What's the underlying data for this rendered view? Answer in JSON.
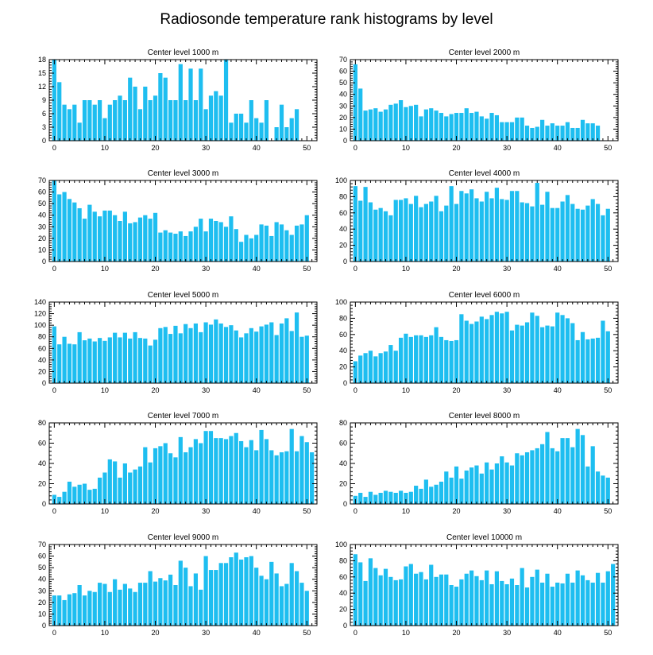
{
  "title": "Radiosonde temperature rank histograms by level",
  "chart_data": [
    {
      "type": "bar",
      "title": "Center level 1000 m",
      "x_start": 0,
      "xlim": [
        -1,
        52
      ],
      "xticks": [
        0,
        10,
        20,
        30,
        40,
        50
      ],
      "ylim": [
        0,
        18
      ],
      "yticks": [
        0,
        3,
        6,
        9,
        12,
        15,
        18
      ],
      "bar_color": "#1EBEF0",
      "values": [
        18,
        13,
        8,
        7,
        8,
        4,
        9,
        9,
        8,
        9,
        5,
        8,
        9,
        10,
        9,
        14,
        12,
        7,
        12,
        9,
        10,
        15,
        14,
        9,
        9,
        17,
        9,
        16,
        9,
        16,
        7,
        10,
        11,
        10,
        18,
        4,
        6,
        6,
        4,
        9,
        5,
        4,
        9,
        0,
        3,
        8,
        3,
        5,
        7,
        0,
        0,
        0
      ]
    },
    {
      "type": "bar",
      "title": "Center level 2000 m",
      "x_start": 0,
      "xlim": [
        -1,
        52
      ],
      "xticks": [
        0,
        10,
        20,
        30,
        40,
        50
      ],
      "ylim": [
        0,
        70
      ],
      "yticks": [
        0,
        10,
        20,
        30,
        40,
        50,
        60,
        70
      ],
      "bar_color": "#1EBEF0",
      "values": [
        66,
        45,
        26,
        27,
        28,
        25,
        27,
        31,
        32,
        35,
        29,
        30,
        31,
        21,
        27,
        28,
        26,
        24,
        21,
        23,
        24,
        24,
        28,
        24,
        25,
        21,
        19,
        24,
        22,
        16,
        16,
        16,
        20,
        20,
        13,
        11,
        12,
        18,
        13,
        15,
        13,
        13,
        16,
        11,
        11,
        18,
        15,
        15,
        13,
        0,
        0,
        0
      ]
    },
    {
      "type": "bar",
      "title": "Center level 3000 m",
      "x_start": 0,
      "xlim": [
        -1,
        52
      ],
      "xticks": [
        0,
        10,
        20,
        30,
        40,
        50
      ],
      "ylim": [
        0,
        70
      ],
      "yticks": [
        0,
        10,
        20,
        30,
        40,
        50,
        60,
        70
      ],
      "bar_color": "#1EBEF0",
      "values": [
        70,
        58,
        60,
        54,
        51,
        46,
        37,
        49,
        43,
        39,
        44,
        44,
        40,
        35,
        43,
        33,
        34,
        38,
        40,
        37,
        42,
        25,
        27,
        25,
        24,
        26,
        22,
        26,
        30,
        37,
        26,
        37,
        35,
        34,
        30,
        39,
        28,
        17,
        23,
        20,
        23,
        32,
        31,
        22,
        34,
        32,
        27,
        23,
        31,
        32,
        40,
        0
      ]
    },
    {
      "type": "bar",
      "title": "Center level 4000 m",
      "x_start": 0,
      "xlim": [
        -1,
        52
      ],
      "xticks": [
        0,
        10,
        20,
        30,
        40,
        50
      ],
      "ylim": [
        0,
        100
      ],
      "yticks": [
        0,
        20,
        40,
        60,
        80,
        100
      ],
      "bar_color": "#1EBEF0",
      "values": [
        93,
        75,
        92,
        73,
        64,
        66,
        62,
        57,
        76,
        76,
        78,
        71,
        81,
        67,
        71,
        74,
        81,
        62,
        69,
        93,
        71,
        87,
        84,
        89,
        78,
        74,
        86,
        78,
        91,
        77,
        76,
        87,
        87,
        73,
        72,
        68,
        97,
        70,
        86,
        66,
        66,
        74,
        82,
        71,
        65,
        64,
        69,
        77,
        71,
        57,
        65,
        0
      ]
    },
    {
      "type": "bar",
      "title": "Center level 5000 m",
      "x_start": 0,
      "xlim": [
        -1,
        52
      ],
      "xticks": [
        0,
        10,
        20,
        30,
        40,
        50
      ],
      "ylim": [
        0,
        140
      ],
      "yticks": [
        0,
        20,
        40,
        60,
        80,
        100,
        120,
        140
      ],
      "bar_color": "#1EBEF0",
      "values": [
        98,
        67,
        80,
        68,
        67,
        88,
        74,
        77,
        72,
        78,
        73,
        79,
        87,
        79,
        87,
        77,
        88,
        78,
        77,
        65,
        75,
        95,
        97,
        85,
        99,
        86,
        102,
        95,
        103,
        88,
        105,
        101,
        110,
        103,
        97,
        100,
        91,
        79,
        86,
        95,
        89,
        98,
        101,
        105,
        83,
        103,
        112,
        90,
        122,
        80,
        82,
        0
      ]
    },
    {
      "type": "bar",
      "title": "Center level 6000 m",
      "x_start": 0,
      "xlim": [
        -1,
        52
      ],
      "xticks": [
        0,
        10,
        20,
        30,
        40,
        50
      ],
      "ylim": [
        0,
        100
      ],
      "yticks": [
        0,
        20,
        40,
        60,
        80,
        100
      ],
      "bar_color": "#1EBEF0",
      "values": [
        27,
        34,
        37,
        40,
        33,
        37,
        39,
        47,
        40,
        56,
        61,
        57,
        59,
        59,
        57,
        59,
        69,
        57,
        53,
        52,
        53,
        85,
        77,
        73,
        76,
        82,
        79,
        84,
        88,
        86,
        88,
        65,
        72,
        71,
        75,
        87,
        83,
        69,
        71,
        70,
        87,
        84,
        80,
        74,
        53,
        63,
        54,
        55,
        56,
        77,
        64,
        0
      ]
    },
    {
      "type": "bar",
      "title": "Center level 7000 m",
      "x_start": 0,
      "xlim": [
        -1,
        52
      ],
      "xticks": [
        0,
        10,
        20,
        30,
        40,
        50
      ],
      "ylim": [
        0,
        80
      ],
      "yticks": [
        0,
        20,
        40,
        60,
        80
      ],
      "bar_color": "#1EBEF0",
      "values": [
        9,
        7,
        12,
        22,
        17,
        19,
        20,
        14,
        15,
        26,
        31,
        44,
        42,
        26,
        40,
        31,
        34,
        37,
        56,
        41,
        55,
        57,
        60,
        50,
        46,
        66,
        51,
        56,
        64,
        60,
        72,
        72,
        65,
        65,
        64,
        67,
        70,
        62,
        56,
        63,
        53,
        73,
        64,
        53,
        48,
        51,
        52,
        74,
        52,
        67,
        61,
        51
      ]
    },
    {
      "type": "bar",
      "title": "Center level 8000 m",
      "x_start": 0,
      "xlim": [
        -1,
        52
      ],
      "xticks": [
        0,
        10,
        20,
        30,
        40,
        50
      ],
      "ylim": [
        0,
        80
      ],
      "yticks": [
        0,
        20,
        40,
        60,
        80
      ],
      "bar_color": "#1EBEF0",
      "values": [
        8,
        11,
        7,
        12,
        9,
        11,
        13,
        12,
        11,
        13,
        11,
        12,
        18,
        15,
        24,
        17,
        19,
        22,
        32,
        26,
        37,
        25,
        33,
        36,
        38,
        30,
        41,
        34,
        40,
        47,
        41,
        38,
        50,
        48,
        51,
        53,
        55,
        59,
        71,
        55,
        52,
        65,
        65,
        56,
        74,
        68,
        37,
        57,
        32,
        28,
        26,
        0
      ]
    },
    {
      "type": "bar",
      "title": "Center level 9000 m",
      "x_start": 0,
      "xlim": [
        -1,
        52
      ],
      "xticks": [
        0,
        10,
        20,
        30,
        40,
        50
      ],
      "ylim": [
        0,
        70
      ],
      "yticks": [
        0,
        10,
        20,
        30,
        40,
        50,
        60,
        70
      ],
      "bar_color": "#1EBEF0",
      "values": [
        26,
        26,
        22,
        27,
        28,
        35,
        26,
        30,
        29,
        37,
        36,
        29,
        40,
        31,
        36,
        32,
        29,
        37,
        37,
        47,
        38,
        41,
        39,
        44,
        35,
        56,
        50,
        34,
        45,
        31,
        60,
        48,
        48,
        54,
        54,
        59,
        63,
        57,
        59,
        60,
        50,
        43,
        40,
        55,
        45,
        34,
        36,
        54,
        47,
        37,
        30,
        0
      ]
    },
    {
      "type": "bar",
      "title": "Center level 10000 m",
      "x_start": 0,
      "xlim": [
        -1,
        52
      ],
      "xticks": [
        0,
        10,
        20,
        30,
        40,
        50
      ],
      "ylim": [
        0,
        100
      ],
      "yticks": [
        0,
        20,
        40,
        60,
        80,
        100
      ],
      "bar_color": "#1EBEF0",
      "values": [
        88,
        78,
        55,
        83,
        71,
        62,
        70,
        60,
        56,
        57,
        73,
        76,
        64,
        66,
        57,
        75,
        60,
        63,
        63,
        50,
        48,
        57,
        64,
        68,
        61,
        56,
        68,
        51,
        67,
        55,
        51,
        58,
        50,
        71,
        47,
        60,
        69,
        53,
        64,
        48,
        53,
        52,
        64,
        53,
        68,
        62,
        56,
        53,
        65,
        53,
        67,
        76
      ]
    }
  ]
}
